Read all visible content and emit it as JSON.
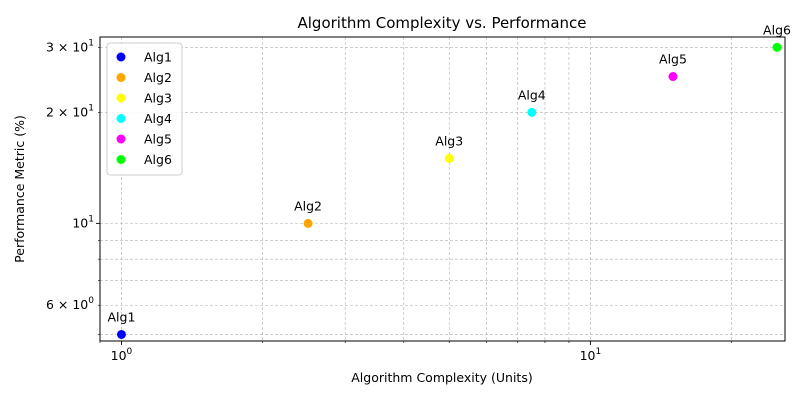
{
  "chart_data": {
    "type": "scatter",
    "title": "Algorithm Complexity vs. Performance",
    "xlabel": "Algorithm Complexity (Units)",
    "ylabel": "Performance Metric (%)",
    "xscale": "log",
    "yscale": "log",
    "xlim": [
      0.9,
      26
    ],
    "ylim": [
      4.8,
      32
    ],
    "x_ticks": [
      {
        "value": 1,
        "label": "10^0"
      },
      {
        "value": 10,
        "label": "10^1"
      }
    ],
    "y_ticks": [
      {
        "value": 6,
        "label": "6 × 10^0"
      },
      {
        "value": 10,
        "label": "10^1"
      },
      {
        "value": 20,
        "label": "2 × 10^1"
      },
      {
        "value": 30,
        "label": "3 × 10^1"
      }
    ],
    "grid": true,
    "legend_position": "upper-left",
    "series": [
      {
        "name": "Alg1",
        "color": "#0000ff",
        "x": [
          1
        ],
        "y": [
          5
        ],
        "label": "Alg1"
      },
      {
        "name": "Alg2",
        "color": "#ffa500",
        "x": [
          2.5
        ],
        "y": [
          10
        ],
        "label": "Alg2"
      },
      {
        "name": "Alg3",
        "color": "#ffff00",
        "x": [
          5
        ],
        "y": [
          15
        ],
        "label": "Alg3"
      },
      {
        "name": "Alg4",
        "color": "#00ffff",
        "x": [
          7.5
        ],
        "y": [
          20
        ],
        "label": "Alg4"
      },
      {
        "name": "Alg5",
        "color": "#ff00ff",
        "x": [
          15
        ],
        "y": [
          25
        ],
        "label": "Alg5"
      },
      {
        "name": "Alg6",
        "color": "#00ff00",
        "x": [
          25
        ],
        "y": [
          30
        ],
        "label": "Alg6"
      }
    ]
  }
}
